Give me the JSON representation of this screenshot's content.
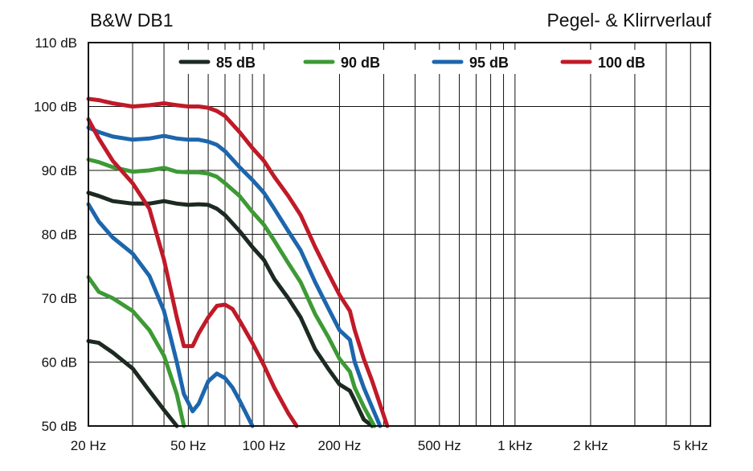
{
  "header": {
    "title": "B&W DB1",
    "subtitle": "Pegel- & Klirrverlauf"
  },
  "chart_data": {
    "type": "line",
    "title": "B&W DB1",
    "subtitle": "Pegel- & Klirrverlauf",
    "x_scale": "log",
    "xlim": [
      20,
      6000
    ],
    "ylim": [
      50,
      110
    ],
    "grid": true,
    "legend_placement": "top",
    "x_ticks": [
      {
        "value": 20,
        "label": "20 Hz"
      },
      {
        "value": 50,
        "label": "50 Hz"
      },
      {
        "value": 100,
        "label": "100 Hz"
      },
      {
        "value": 200,
        "label": "200 Hz"
      },
      {
        "value": 500,
        "label": "500 Hz"
      },
      {
        "value": 1000,
        "label": "1 kHz"
      },
      {
        "value": 2000,
        "label": "2 kHz"
      },
      {
        "value": 5000,
        "label": "5 kHz"
      }
    ],
    "y_ticks": [
      {
        "value": 50,
        "label": "50 dB"
      },
      {
        "value": 60,
        "label": "60 dB"
      },
      {
        "value": 70,
        "label": "70 dB"
      },
      {
        "value": 80,
        "label": "80 dB"
      },
      {
        "value": 90,
        "label": "90 dB"
      },
      {
        "value": 100,
        "label": "100 dB"
      },
      {
        "value": 110,
        "label": "110 dB"
      }
    ],
    "series": [
      {
        "name": "85 dB",
        "color": "#1c2a22",
        "level": [
          [
            20,
            86.5
          ],
          [
            22,
            86
          ],
          [
            25,
            85.2
          ],
          [
            30,
            84.8
          ],
          [
            35,
            84.8
          ],
          [
            40,
            85.2
          ],
          [
            45,
            84.8
          ],
          [
            50,
            84.6
          ],
          [
            55,
            84.7
          ],
          [
            60,
            84.6
          ],
          [
            65,
            84
          ],
          [
            70,
            83
          ],
          [
            80,
            80.5
          ],
          [
            90,
            78
          ],
          [
            100,
            76
          ],
          [
            110,
            73
          ],
          [
            125,
            70
          ],
          [
            140,
            67
          ],
          [
            160,
            62
          ],
          [
            180,
            59
          ],
          [
            200,
            56.5
          ],
          [
            220,
            55.5
          ],
          [
            230,
            54
          ],
          [
            250,
            51
          ],
          [
            270,
            50
          ]
        ],
        "distortion": [
          [
            20,
            63.3
          ],
          [
            22,
            63
          ],
          [
            25,
            61.5
          ],
          [
            30,
            59
          ],
          [
            35,
            55.5
          ],
          [
            40,
            52.5
          ],
          [
            45,
            50
          ]
        ]
      },
      {
        "name": "90 dB",
        "color": "#3d9a35",
        "level": [
          [
            20,
            91.7
          ],
          [
            22,
            91.3
          ],
          [
            25,
            90.5
          ],
          [
            30,
            89.8
          ],
          [
            35,
            90
          ],
          [
            40,
            90.4
          ],
          [
            45,
            89.8
          ],
          [
            50,
            89.7
          ],
          [
            55,
            89.7
          ],
          [
            60,
            89.5
          ],
          [
            65,
            89
          ],
          [
            70,
            88
          ],
          [
            80,
            86
          ],
          [
            90,
            83.5
          ],
          [
            100,
            81.5
          ],
          [
            110,
            79
          ],
          [
            125,
            75.5
          ],
          [
            140,
            72.5
          ],
          [
            160,
            67.5
          ],
          [
            180,
            64
          ],
          [
            200,
            60.5
          ],
          [
            220,
            58.5
          ],
          [
            230,
            56
          ],
          [
            250,
            53
          ],
          [
            275,
            50
          ]
        ],
        "distortion": [
          [
            20,
            73.3
          ],
          [
            22,
            71
          ],
          [
            25,
            70
          ],
          [
            30,
            68
          ],
          [
            35,
            65
          ],
          [
            40,
            61
          ],
          [
            45,
            55
          ],
          [
            48,
            50
          ]
        ]
      },
      {
        "name": "95 dB",
        "color": "#1d66ad",
        "level": [
          [
            20,
            96.7
          ],
          [
            22,
            96
          ],
          [
            25,
            95.3
          ],
          [
            30,
            94.8
          ],
          [
            35,
            95
          ],
          [
            40,
            95.4
          ],
          [
            45,
            95
          ],
          [
            50,
            94.8
          ],
          [
            55,
            94.8
          ],
          [
            60,
            94.5
          ],
          [
            65,
            94
          ],
          [
            70,
            93
          ],
          [
            80,
            90.5
          ],
          [
            90,
            88.5
          ],
          [
            100,
            86.5
          ],
          [
            110,
            84
          ],
          [
            125,
            80.5
          ],
          [
            140,
            77.5
          ],
          [
            160,
            72.5
          ],
          [
            180,
            68.5
          ],
          [
            200,
            65
          ],
          [
            220,
            63.5
          ],
          [
            230,
            60
          ],
          [
            250,
            56
          ],
          [
            290,
            50
          ]
        ],
        "distortion": [
          [
            20,
            84.7
          ],
          [
            22,
            82
          ],
          [
            25,
            79.5
          ],
          [
            30,
            77
          ],
          [
            35,
            73.5
          ],
          [
            40,
            68
          ],
          [
            45,
            60
          ],
          [
            48,
            55
          ],
          [
            52,
            52.3
          ],
          [
            55,
            53.5
          ],
          [
            60,
            57
          ],
          [
            65,
            58.2
          ],
          [
            70,
            57.5
          ],
          [
            75,
            56
          ],
          [
            80,
            54
          ],
          [
            90,
            50
          ]
        ]
      },
      {
        "name": "100 dB",
        "color": "#c01a28",
        "level": [
          [
            20,
            101.2
          ],
          [
            22,
            101
          ],
          [
            25,
            100.5
          ],
          [
            30,
            100
          ],
          [
            35,
            100.2
          ],
          [
            40,
            100.5
          ],
          [
            45,
            100.2
          ],
          [
            50,
            100
          ],
          [
            55,
            100
          ],
          [
            60,
            99.8
          ],
          [
            65,
            99.3
          ],
          [
            70,
            98.5
          ],
          [
            80,
            96
          ],
          [
            90,
            93.5
          ],
          [
            100,
            91.5
          ],
          [
            110,
            89
          ],
          [
            125,
            86
          ],
          [
            140,
            83
          ],
          [
            160,
            78
          ],
          [
            180,
            74
          ],
          [
            200,
            70.5
          ],
          [
            220,
            68
          ],
          [
            230,
            65
          ],
          [
            250,
            60.5
          ],
          [
            270,
            57
          ],
          [
            310,
            50
          ]
        ],
        "distortion": [
          [
            20,
            98
          ],
          [
            22,
            95
          ],
          [
            25,
            91.5
          ],
          [
            30,
            88
          ],
          [
            35,
            84
          ],
          [
            40,
            76
          ],
          [
            45,
            67
          ],
          [
            48,
            62.5
          ],
          [
            52,
            62.5
          ],
          [
            55,
            64.5
          ],
          [
            60,
            67
          ],
          [
            65,
            68.8
          ],
          [
            70,
            69
          ],
          [
            75,
            68.3
          ],
          [
            80,
            66.5
          ],
          [
            90,
            63
          ],
          [
            100,
            59.5
          ],
          [
            110,
            56
          ],
          [
            125,
            52
          ],
          [
            135,
            50
          ]
        ]
      }
    ]
  }
}
